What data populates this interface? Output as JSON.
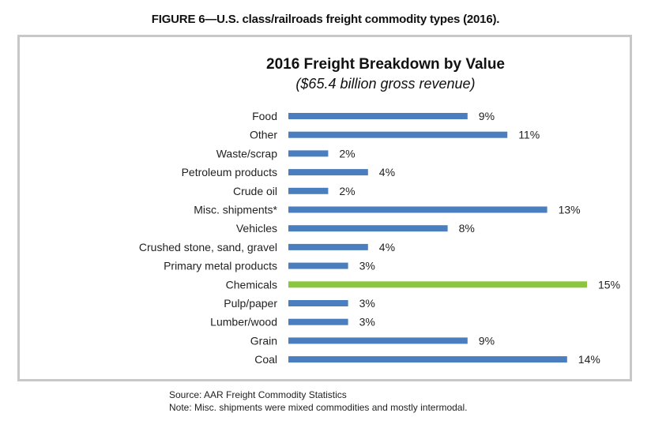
{
  "figure_title": "FIGURE 6—U.S. class/railroads freight commodity types (2016).",
  "chart_data": {
    "type": "bar",
    "orientation": "horizontal",
    "title": "2016 Freight Breakdown by Value",
    "subtitle": "($65.4 billion gross revenue)",
    "categories": [
      "Food",
      "Other",
      "Waste/scrap",
      "Petroleum products",
      "Crude oil",
      "Misc. shipments*",
      "Vehicles",
      "Crushed stone, sand, gravel",
      "Primary metal products",
      "Chemicals",
      "Pulp/paper",
      "Lumber/wood",
      "Grain",
      "Coal"
    ],
    "values": [
      9,
      11,
      2,
      4,
      2,
      13,
      8,
      4,
      3,
      15,
      3,
      3,
      9,
      14
    ],
    "value_labels": [
      "9%",
      "11%",
      "2%",
      "4%",
      "2%",
      "13%",
      "8%",
      "4%",
      "3%",
      "15%",
      "3%",
      "3%",
      "9%",
      "14%"
    ],
    "unit": "%",
    "xlim": [
      0,
      15
    ],
    "grid": false,
    "legend": "none",
    "colors": {
      "default_bar": "#4a7ebf",
      "highlight_bar": "#8cc63f"
    },
    "highlight_category": "Chemicals"
  },
  "notes": {
    "source": "Source: AAR Freight Commodity Statistics",
    "note": "Note: Misc. shipments were mixed commodities and mostly intermodal."
  }
}
